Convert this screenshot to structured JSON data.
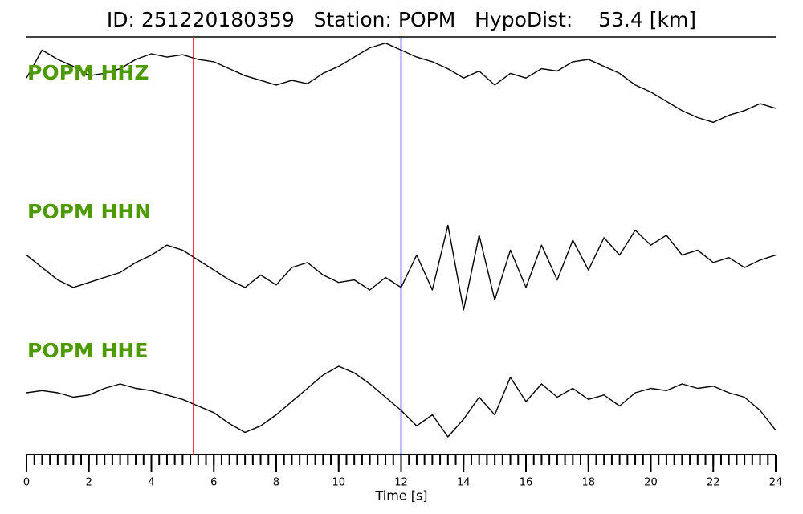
{
  "chart_data": {
    "type": "line",
    "title": "ID: 251220180359   Station: POPM   HypoDist:    53.4 [km]",
    "xlabel": "Time [s]",
    "x": [
      0,
      0.5,
      1,
      1.5,
      2,
      2.5,
      3,
      3.5,
      4,
      4.5,
      5,
      5.5,
      6,
      6.5,
      7,
      7.5,
      8,
      8.5,
      9,
      9.5,
      10,
      10.5,
      11,
      11.5,
      12,
      12.5,
      13,
      13.5,
      14,
      14.5,
      15,
      15.5,
      16,
      16.5,
      17,
      17.5,
      18,
      18.5,
      19,
      19.5,
      20,
      20.5,
      21,
      21.5,
      22,
      22.5,
      23,
      23.5,
      24
    ],
    "xlim": [
      0,
      24
    ],
    "xticks": [
      0,
      2,
      4,
      6,
      8,
      10,
      12,
      14,
      16,
      18,
      20,
      22,
      24
    ],
    "xminor_step": 0.25,
    "ylim": [
      -1,
      1
    ],
    "label_color": "#4c9a00",
    "series": [
      {
        "name": "POPM HHZ",
        "color": "#000000",
        "values": [
          0.1,
          0.7,
          0.5,
          0.35,
          0.15,
          0.2,
          0.3,
          0.5,
          0.62,
          0.55,
          0.6,
          0.5,
          0.45,
          0.3,
          0.15,
          0.05,
          -0.05,
          0.05,
          -0.02,
          0.2,
          0.35,
          0.55,
          0.75,
          0.85,
          0.7,
          0.55,
          0.45,
          0.3,
          0.1,
          0.25,
          -0.05,
          0.2,
          0.1,
          0.3,
          0.25,
          0.45,
          0.5,
          0.35,
          0.2,
          -0.05,
          -0.2,
          -0.4,
          -0.6,
          -0.75,
          -0.85,
          -0.7,
          -0.6,
          -0.45,
          -0.55
        ]
      },
      {
        "name": "POPM HHN",
        "color": "#000000",
        "values": [
          0.2,
          -0.05,
          -0.3,
          -0.45,
          -0.35,
          -0.25,
          -0.15,
          0.05,
          0.2,
          0.4,
          0.3,
          0.1,
          -0.1,
          -0.3,
          -0.45,
          -0.2,
          -0.4,
          -0.05,
          0.05,
          -0.2,
          -0.35,
          -0.3,
          -0.5,
          -0.25,
          -0.45,
          0.2,
          -0.5,
          0.8,
          -0.9,
          0.6,
          -0.7,
          0.3,
          -0.45,
          0.4,
          -0.3,
          0.5,
          -0.1,
          0.55,
          0.2,
          0.7,
          0.4,
          0.6,
          0.2,
          0.3,
          0.05,
          0.15,
          -0.05,
          0.1,
          0.2
        ]
      },
      {
        "name": "POPM HHE",
        "color": "#000000",
        "values": [
          0.2,
          0.25,
          0.2,
          0.1,
          0.15,
          0.3,
          0.4,
          0.3,
          0.25,
          0.15,
          0.05,
          -0.1,
          -0.25,
          -0.5,
          -0.7,
          -0.55,
          -0.3,
          0.0,
          0.3,
          0.6,
          0.8,
          0.65,
          0.4,
          0.1,
          -0.2,
          -0.55,
          -0.3,
          -0.8,
          -0.4,
          0.1,
          -0.3,
          0.55,
          0.0,
          0.4,
          0.1,
          0.3,
          0.05,
          0.15,
          -0.1,
          0.2,
          0.3,
          0.25,
          0.4,
          0.3,
          0.35,
          0.2,
          0.1,
          -0.2,
          -0.65
        ]
      }
    ],
    "vlines": [
      {
        "x": 5.35,
        "color": "#ff0000"
      },
      {
        "x": 12.0,
        "color": "#0000ff"
      }
    ]
  }
}
